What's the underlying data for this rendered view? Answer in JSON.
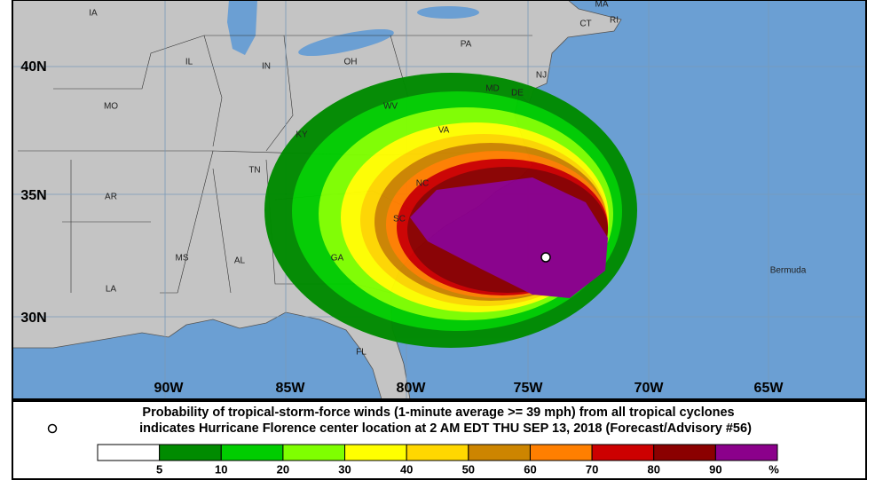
{
  "map": {
    "states": [
      "IA",
      "IL",
      "IN",
      "OH",
      "PA",
      "MA",
      "CT",
      "RI",
      "NJ",
      "MO",
      "WV",
      "VA",
      "KY",
      "MD",
      "DE",
      "TN",
      "AR",
      "NC",
      "SC",
      "MS",
      "AL",
      "GA",
      "LA",
      "FL",
      "Bermuda"
    ],
    "latitudes": [
      "40N",
      "35N",
      "30N"
    ],
    "longitudes": [
      "90W",
      "85W",
      "80W",
      "75W",
      "70W",
      "65W"
    ],
    "caption": {
      "line1": "Probability of tropical-storm-force winds (1-minute average >= 39 mph) from all tropical cyclones",
      "line2": "indicates Hurricane Florence center location at 2 AM EDT THU SEP 13, 2018 (Forecast/Advisory #56)"
    },
    "legend": {
      "colors": [
        "#ffffff",
        "#008b00",
        "#00cd00",
        "#7fff00",
        "#ffff00",
        "#ffd700",
        "#cd8500",
        "#ff7f00",
        "#cd0000",
        "#8b0000",
        "#8b008b"
      ],
      "labels": [
        5,
        10,
        20,
        30,
        40,
        50,
        60,
        70,
        80,
        90,
        "%"
      ]
    }
  }
}
